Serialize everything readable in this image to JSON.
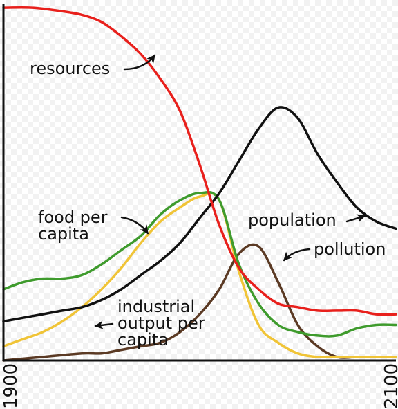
{
  "chart_data": {
    "type": "line",
    "title": "",
    "xlabel": "",
    "ylabel": "",
    "xlim": [
      1900,
      2100
    ],
    "ylim": [
      0,
      1
    ],
    "x_tick_labels": [
      "1900",
      "2100"
    ],
    "grid": false,
    "legend": "none (series labelled directly on the plot)",
    "series": [
      {
        "name": "resources",
        "color": "#e8201c",
        "x": [
          1900,
          1915,
          1930,
          1940,
          1950,
          1960,
          1970,
          1980,
          1990,
          2000,
          2010,
          2020,
          2030,
          2040,
          2050,
          2060,
          2070,
          2080,
          2090,
          2100
        ],
        "y": [
          0.99,
          0.99,
          0.98,
          0.97,
          0.95,
          0.91,
          0.86,
          0.79,
          0.7,
          0.55,
          0.38,
          0.26,
          0.2,
          0.16,
          0.15,
          0.14,
          0.14,
          0.14,
          0.13,
          0.13
        ]
      },
      {
        "name": "food per capita",
        "color": "#3f9b2d",
        "x": [
          1900,
          1910,
          1920,
          1930,
          1940,
          1950,
          1960,
          1970,
          1980,
          1990,
          2000,
          2010,
          2020,
          2030,
          2040,
          2050,
          2060,
          2070,
          2080,
          2090,
          2100
        ],
        "y": [
          0.2,
          0.22,
          0.23,
          0.23,
          0.24,
          0.27,
          0.31,
          0.35,
          0.41,
          0.45,
          0.47,
          0.45,
          0.27,
          0.16,
          0.1,
          0.08,
          0.07,
          0.07,
          0.09,
          0.1,
          0.1
        ]
      },
      {
        "name": "industrial output per capita",
        "color": "#f0c437",
        "x": [
          1900,
          1910,
          1920,
          1930,
          1940,
          1950,
          1960,
          1970,
          1980,
          1990,
          2000,
          2010,
          2020,
          2030,
          2040,
          2050,
          2060,
          2070,
          2080,
          2090,
          2100
        ],
        "y": [
          0.04,
          0.06,
          0.08,
          0.11,
          0.15,
          0.2,
          0.26,
          0.33,
          0.39,
          0.43,
          0.46,
          0.45,
          0.25,
          0.1,
          0.05,
          0.02,
          0.01,
          0.01,
          0.01,
          0.01,
          0.01
        ]
      },
      {
        "name": "population",
        "color": "#111111",
        "x": [
          1900,
          1910,
          1920,
          1930,
          1940,
          1950,
          1960,
          1970,
          1980,
          1990,
          2000,
          2010,
          2020,
          2030,
          2040,
          2050,
          2060,
          2070,
          2080,
          2090,
          2100
        ],
        "y": [
          0.11,
          0.12,
          0.13,
          0.14,
          0.15,
          0.17,
          0.2,
          0.24,
          0.28,
          0.33,
          0.4,
          0.47,
          0.56,
          0.65,
          0.71,
          0.68,
          0.58,
          0.5,
          0.43,
          0.39,
          0.37
        ]
      },
      {
        "name": "pollution",
        "color": "#5b3a24",
        "x": [
          1900,
          1920,
          1940,
          1950,
          1960,
          1970,
          1980,
          1990,
          2000,
          2010,
          2020,
          2030,
          2040,
          2050,
          2060,
          2070,
          2080,
          2090,
          2100
        ],
        "y": [
          0.0,
          0.01,
          0.02,
          0.02,
          0.03,
          0.04,
          0.05,
          0.08,
          0.13,
          0.2,
          0.3,
          0.32,
          0.22,
          0.1,
          0.04,
          0.01,
          0.01,
          0.01,
          0.01
        ]
      }
    ],
    "annotations": [
      {
        "text": "resources",
        "series": 0
      },
      {
        "text": "food per",
        "text2": "capita",
        "series": 1
      },
      {
        "text": "industrial",
        "text2": "output per",
        "text3": "capita",
        "series": 2
      },
      {
        "text": "population",
        "series": 3
      },
      {
        "text": "pollution",
        "series": 4
      }
    ]
  }
}
